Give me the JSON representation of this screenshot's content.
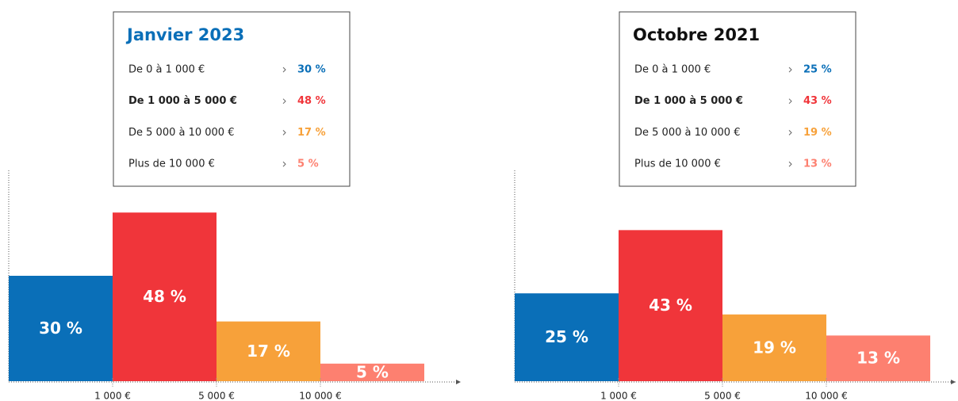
{
  "chart_data": [
    {
      "type": "bar",
      "title": "Janvier 2023",
      "title_color": "#0a6fb8",
      "categories": [
        "De 0 à 1 000 €",
        "De 1 000 à 5 000 €",
        "De 5 000 à 10 000 €",
        "Plus de 10 000 €"
      ],
      "values": [
        30,
        48,
        17,
        5
      ],
      "value_labels": [
        "30 %",
        "48 %",
        "17 %",
        "5 %"
      ],
      "colors": [
        "#0a6fb8",
        "#f0353a",
        "#f7a13a",
        "#fd8070"
      ],
      "highlight": 1,
      "boundary_labels": [
        "1 000 €",
        "5 000 €",
        "10 000 €"
      ],
      "ylim": [
        0,
        60
      ]
    },
    {
      "type": "bar",
      "title": "Octobre 2021",
      "title_color": "#111111",
      "categories": [
        "De 0 à 1 000 €",
        "De 1 000 à 5 000 €",
        "De 5 000 à 10 000 €",
        "Plus de 10 000 €"
      ],
      "values": [
        25,
        43,
        19,
        13
      ],
      "value_labels": [
        "25 %",
        "43 %",
        "19 %",
        "13 %"
      ],
      "colors": [
        "#0a6fb8",
        "#f0353a",
        "#f7a13a",
        "#fd8070"
      ],
      "highlight": 1,
      "boundary_labels": [
        "1 000 €",
        "5 000 €",
        "10 000 €"
      ],
      "ylim": [
        0,
        60
      ]
    }
  ]
}
